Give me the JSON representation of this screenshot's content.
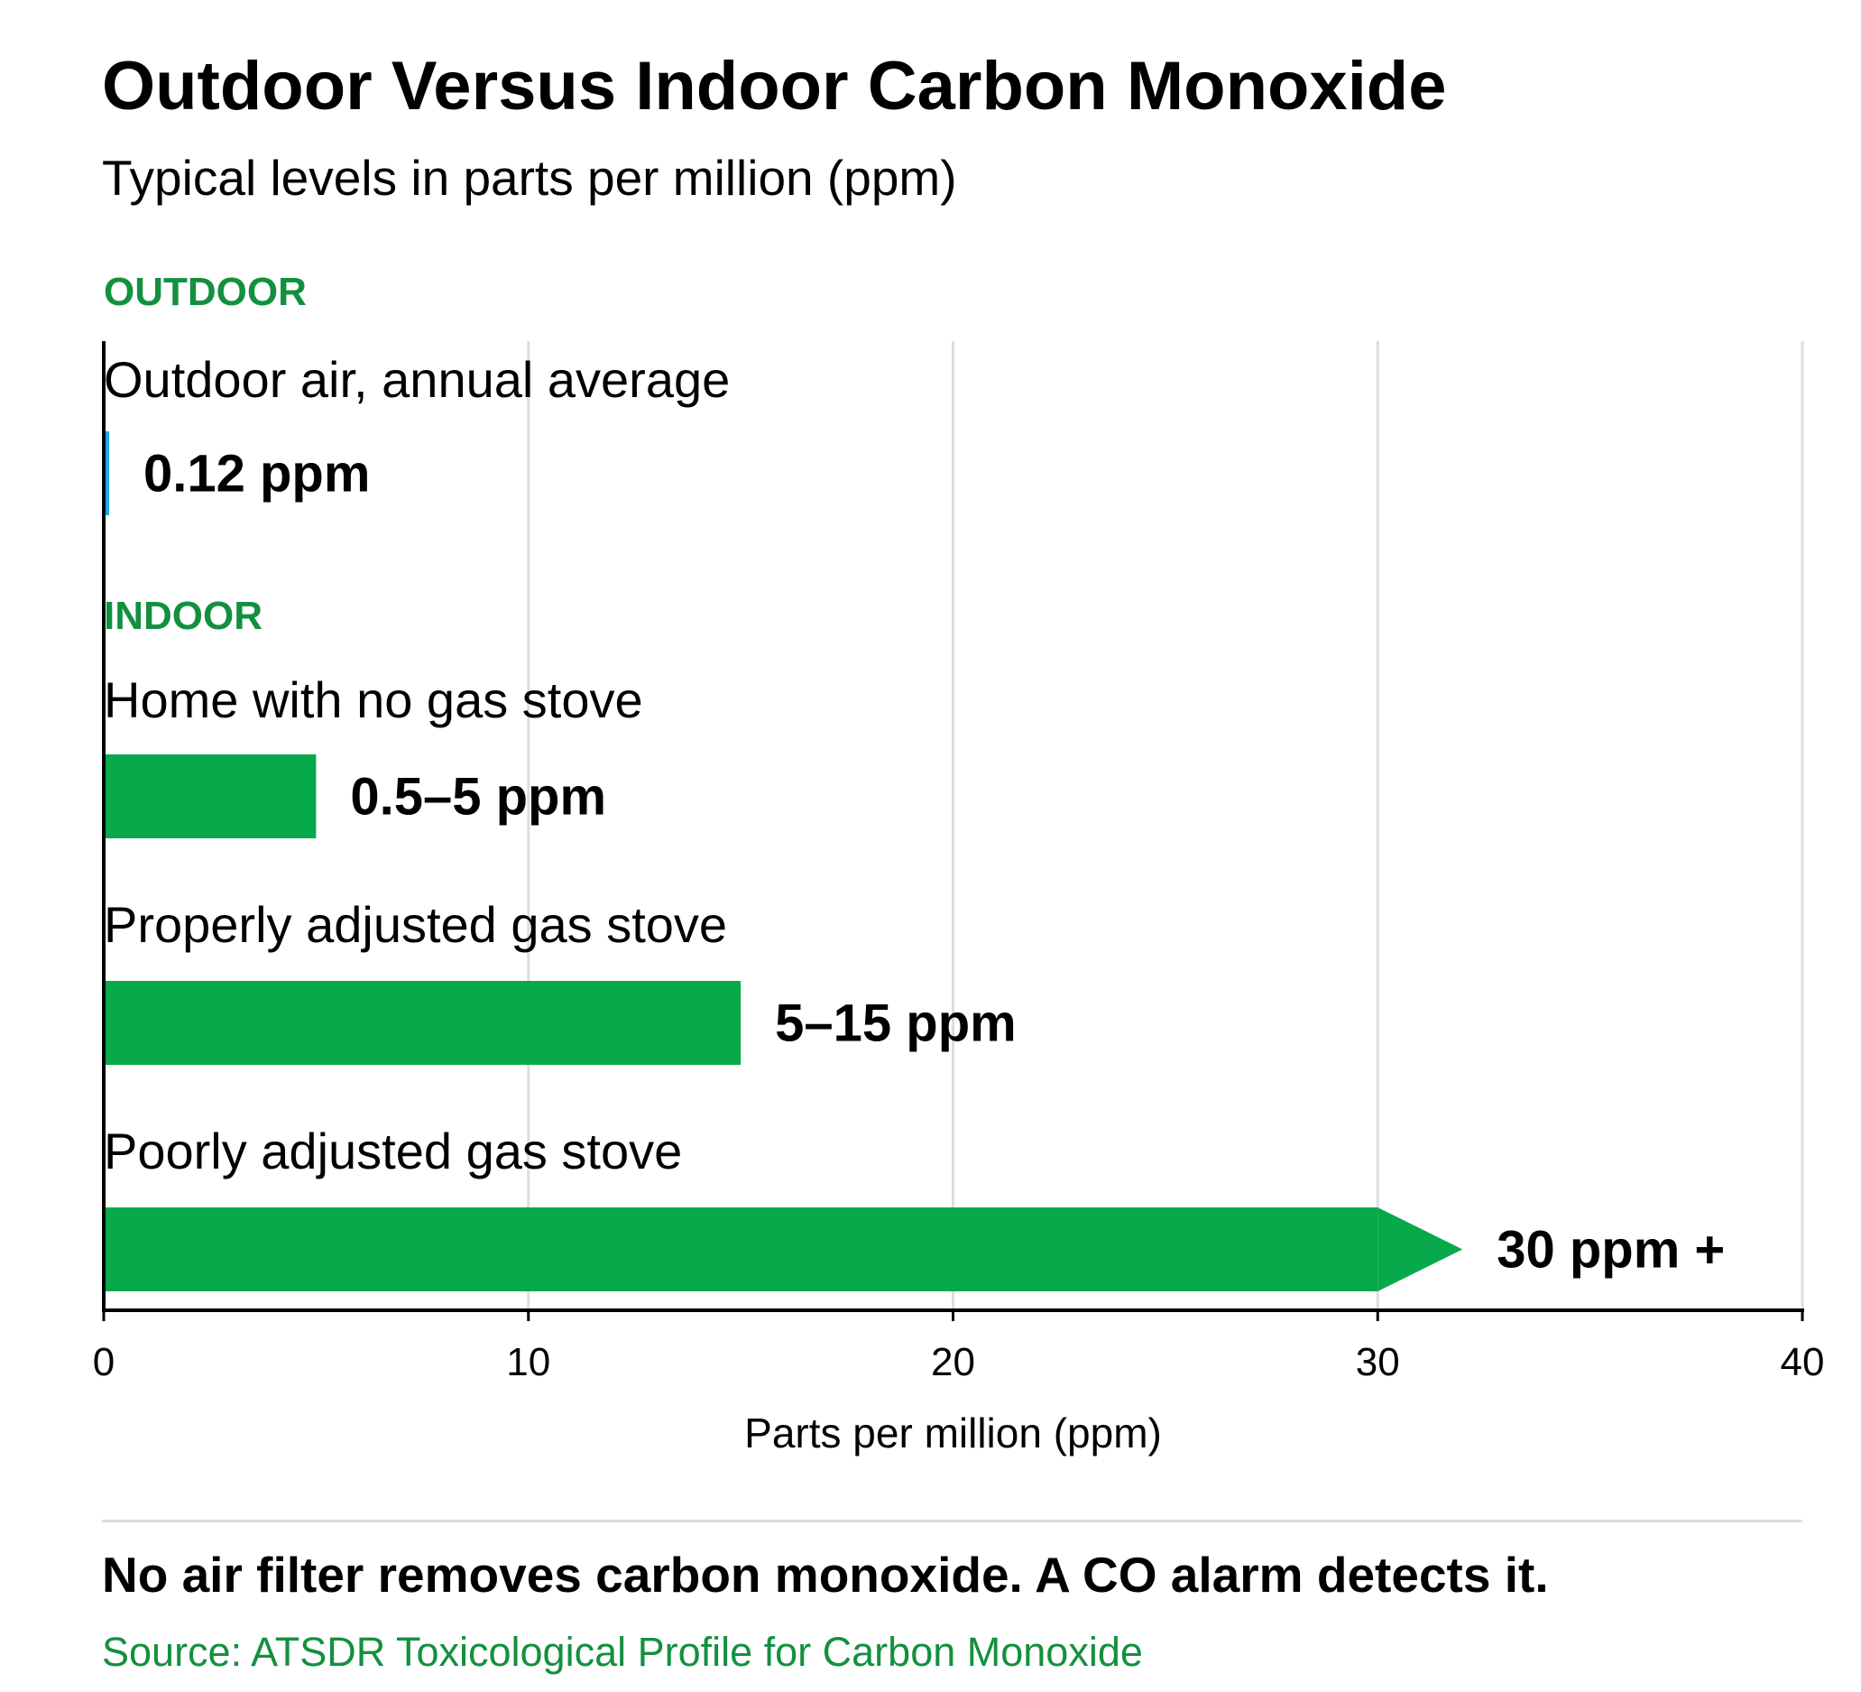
{
  "chart_data": {
    "type": "bar",
    "title": "Outdoor Versus Indoor Carbon Monoxide",
    "subtitle": "Typical levels in parts per million (ppm)",
    "xlabel": "Parts per million (ppm)",
    "xlim": [
      0,
      40
    ],
    "xticks": [
      0,
      10,
      20,
      30,
      40
    ],
    "grid": true,
    "groups": [
      {
        "label": "OUTDOOR",
        "bars": [
          {
            "category": "Outdoor air, annual average",
            "range": [
              0,
              0.12
            ],
            "value_label": "0.12 ppm",
            "color": "#1ea7dd",
            "open_ended": false
          }
        ]
      },
      {
        "label": "INDOOR",
        "bars": [
          {
            "category": "Home with no gas stove",
            "range": [
              0.5,
              5
            ],
            "value_label": "0.5–5 ppm",
            "color": "#08a94a",
            "open_ended": false
          },
          {
            "category": "Properly adjusted gas stove",
            "range": [
              5,
              15
            ],
            "value_label": "5–15 ppm",
            "color": "#08a94a",
            "open_ended": false
          },
          {
            "category": "Poorly adjusted gas stove",
            "range": [
              30,
              30
            ],
            "value_label": "30 ppm +",
            "color": "#08a94a",
            "open_ended": true
          }
        ]
      }
    ],
    "group_label_color": "#13903f",
    "grid_color": "#dddddd"
  },
  "footer": {
    "note": "No air filter removes carbon monoxide. A CO alarm detects it.",
    "source": "Source: ATSDR Toxicological Profile for Carbon Monoxide",
    "source_color": "#13903f"
  }
}
